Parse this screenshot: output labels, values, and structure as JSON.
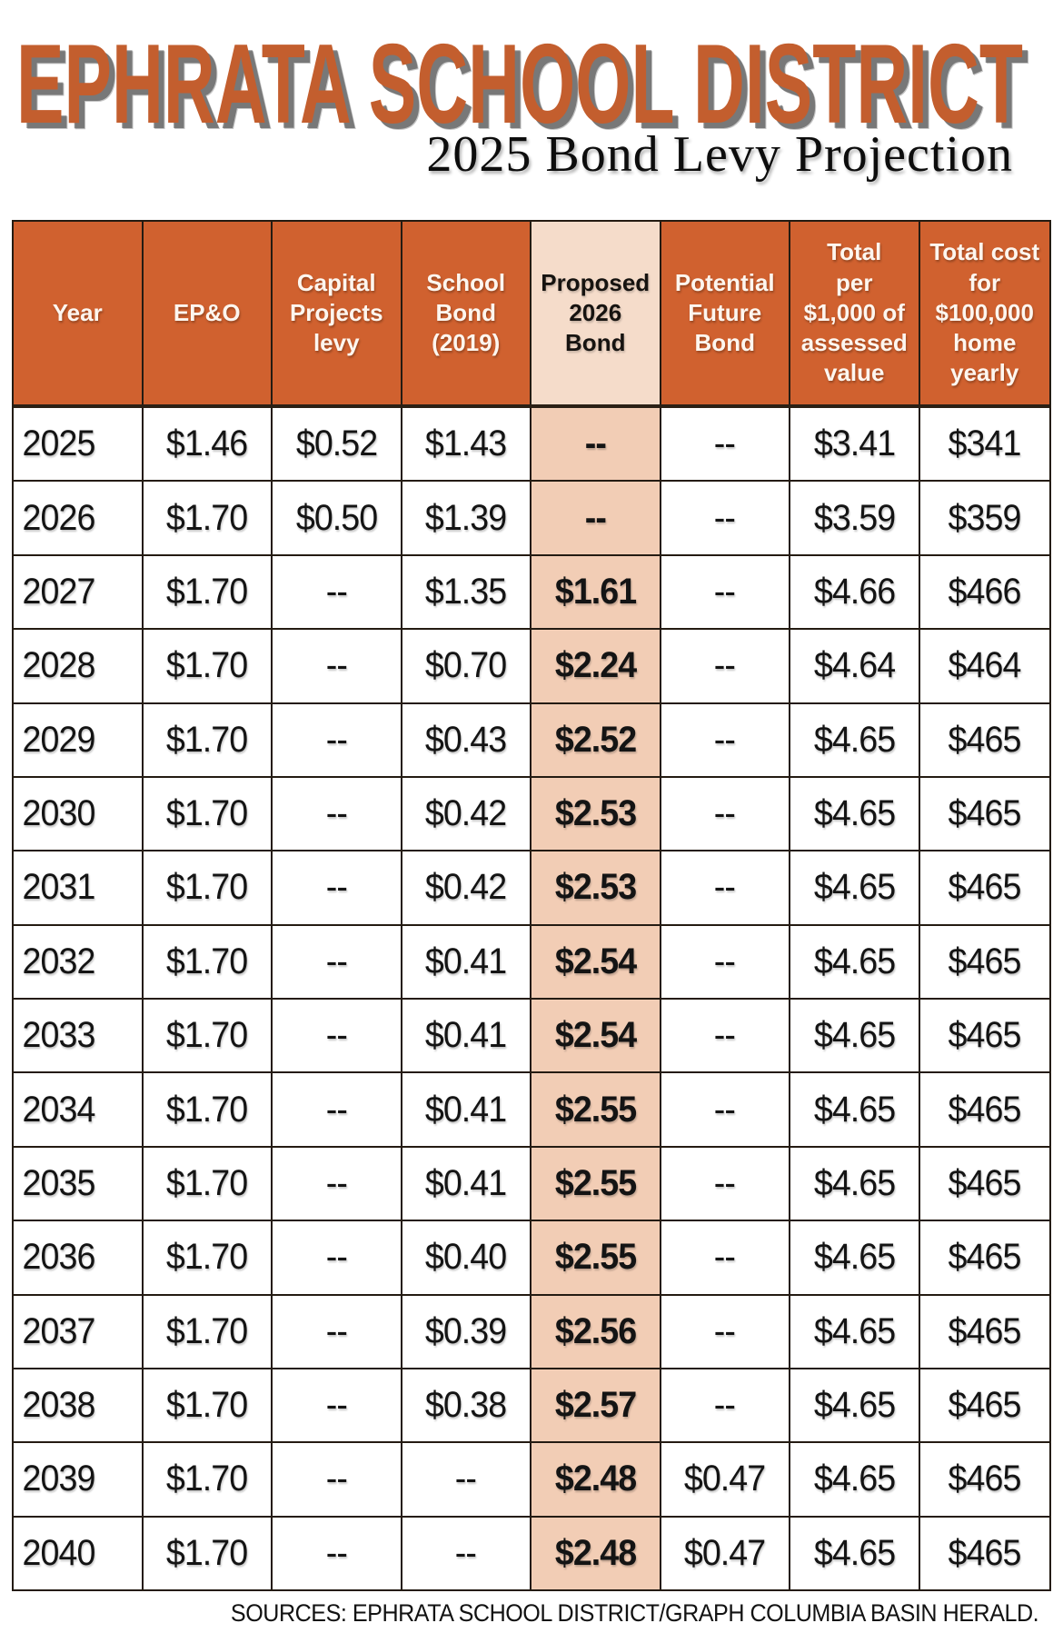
{
  "header": {
    "title": "EPHRATA SCHOOL DISTRICT",
    "subtitle": "2025 Bond Levy Projection"
  },
  "chart_data": {
    "type": "table",
    "title": "EPHRATA SCHOOL DISTRICT",
    "subtitle": "2025 Bond Levy Projection",
    "columns": [
      "Year",
      "EP&O",
      "Capital Projects levy",
      "School Bond (2019)",
      "Proposed 2026 Bond",
      "Potential Future Bond",
      "Total per $1,000 of assessed value",
      "Total cost for $100,000 home yearly"
    ],
    "highlight_column": "Proposed 2026 Bond",
    "rows": [
      [
        "2025",
        "$1.46",
        "$0.52",
        "$1.43",
        "--",
        "--",
        "$3.41",
        "$341"
      ],
      [
        "2026",
        "$1.70",
        "$0.50",
        "$1.39",
        "--",
        "--",
        "$3.59",
        "$359"
      ],
      [
        "2027",
        "$1.70",
        "--",
        "$1.35",
        "$1.61",
        "--",
        "$4.66",
        "$466"
      ],
      [
        "2028",
        "$1.70",
        "--",
        "$0.70",
        "$2.24",
        "--",
        "$4.64",
        "$464"
      ],
      [
        "2029",
        "$1.70",
        "--",
        "$0.43",
        "$2.52",
        "--",
        "$4.65",
        "$465"
      ],
      [
        "2030",
        "$1.70",
        "--",
        "$0.42",
        "$2.53",
        "--",
        "$4.65",
        "$465"
      ],
      [
        "2031",
        "$1.70",
        "--",
        "$0.42",
        "$2.53",
        "--",
        "$4.65",
        "$465"
      ],
      [
        "2032",
        "$1.70",
        "--",
        "$0.41",
        "$2.54",
        "--",
        "$4.65",
        "$465"
      ],
      [
        "2033",
        "$1.70",
        "--",
        "$0.41",
        "$2.54",
        "--",
        "$4.65",
        "$465"
      ],
      [
        "2034",
        "$1.70",
        "--",
        "$0.41",
        "$2.55",
        "--",
        "$4.65",
        "$465"
      ],
      [
        "2035",
        "$1.70",
        "--",
        "$0.41",
        "$2.55",
        "--",
        "$4.65",
        "$465"
      ],
      [
        "2036",
        "$1.70",
        "--",
        "$0.40",
        "$2.55",
        "--",
        "$4.65",
        "$465"
      ],
      [
        "2037",
        "$1.70",
        "--",
        "$0.39",
        "$2.56",
        "--",
        "$4.65",
        "$465"
      ],
      [
        "2038",
        "$1.70",
        "--",
        "$0.38",
        "$2.57",
        "--",
        "$4.65",
        "$465"
      ],
      [
        "2039",
        "$1.70",
        "--",
        "--",
        "$2.48",
        "$0.47",
        "$4.65",
        "$465"
      ],
      [
        "2040",
        "$1.70",
        "--",
        "--",
        "$2.48",
        "$0.47",
        "$4.65",
        "$465"
      ]
    ],
    "source": "SOURCES: EPHRATA SCHOOL DISTRICT/GRAPH COLUMBIA BASIN HERALD."
  },
  "display": {
    "columns": [
      {
        "label": "Year",
        "highlight": false
      },
      {
        "label": "EP&O",
        "highlight": false
      },
      {
        "label": "Capital\nProjects\nlevy",
        "highlight": false
      },
      {
        "label": "School\nBond\n(2019)",
        "highlight": false
      },
      {
        "label": "Proposed\n2026\nBond",
        "highlight": true
      },
      {
        "label": "Potential\nFuture\nBond",
        "highlight": false
      },
      {
        "label": "Total\nper\n$1,000 of\nassessed\nvalue",
        "highlight": false
      },
      {
        "label": "Total cost\nfor\n$100,000\nhome\nyearly",
        "highlight": false
      }
    ]
  },
  "colors": {
    "title_orange": "#c35e2e",
    "header_orange": "#d0612f",
    "highlight_header_pink": "#f5dcca",
    "highlight_cell_pink": "#f2cdb5",
    "border_dark": "#241b12",
    "text_dark": "#141414",
    "header_text": "#fdf6ef"
  }
}
